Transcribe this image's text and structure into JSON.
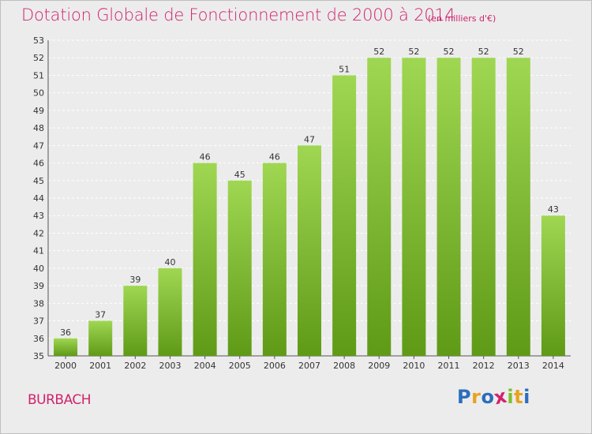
{
  "chart_data": {
    "type": "bar",
    "title": "Dotation Globale de Fonctionnement de 2000 à 2014",
    "subtitle": "(en milliers d'€)",
    "categories": [
      "2000",
      "2001",
      "2002",
      "2003",
      "2004",
      "2005",
      "2006",
      "2007",
      "2008",
      "2009",
      "2010",
      "2011",
      "2012",
      "2013",
      "2014"
    ],
    "values": [
      36,
      37,
      39,
      40,
      46,
      45,
      46,
      47,
      51,
      52,
      52,
      52,
      52,
      52,
      43
    ],
    "ylim": [
      35,
      53
    ],
    "yticks": [
      35,
      36,
      37,
      38,
      39,
      40,
      41,
      42,
      43,
      44,
      45,
      46,
      47,
      48,
      49,
      50,
      51,
      52,
      53
    ],
    "xlabel": "",
    "ylabel": "",
    "grid": true,
    "bar_color": "#7cbf2e",
    "data_labels": true
  },
  "commune": "BURBACH",
  "logo": {
    "letters": [
      "P",
      "r",
      "o",
      "x",
      "i",
      "t",
      "i"
    ],
    "colors": [
      "#2a6ebb",
      "#e8a21c",
      "#2a6ebb",
      "#d0236b",
      "#7cbf2e",
      "#e8a21c",
      "#2a6ebb"
    ]
  },
  "colors": {
    "accent": "#d0236b",
    "background": "#ececec",
    "grid": "#ffffff",
    "axis": "#555555"
  }
}
